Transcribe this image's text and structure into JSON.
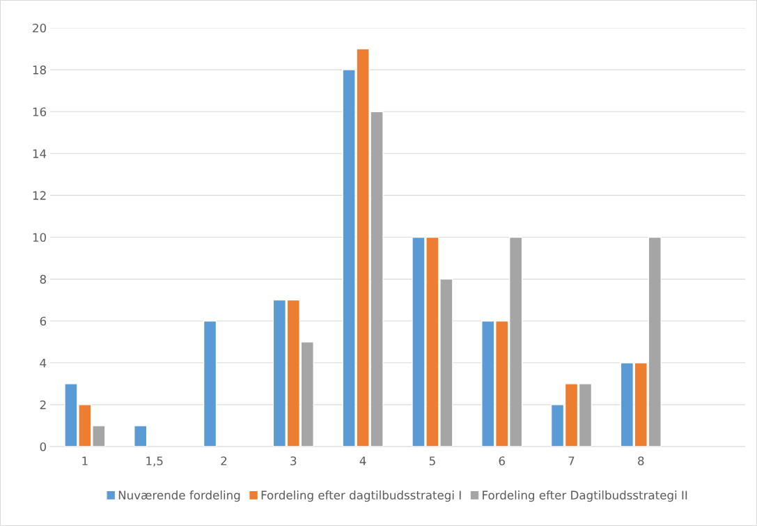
{
  "chart_data": {
    "type": "bar",
    "categories": [
      "1",
      "1,5",
      "2",
      "3",
      "4",
      "5",
      "6",
      "7",
      "8",
      null
    ],
    "series": [
      {
        "name": "Nuværende fordeling",
        "color": "#5b9bd5",
        "values": [
          3,
          1,
          6,
          7,
          18,
          10,
          6,
          2,
          4,
          null
        ]
      },
      {
        "name": "Fordeling efter dagtilbudsstrategi I",
        "color": "#ed7d31",
        "values": [
          2,
          null,
          null,
          7,
          19,
          10,
          6,
          3,
          4,
          null
        ]
      },
      {
        "name": "Fordeling efter Dagtilbudsstrategi II",
        "color": "#a5a5a5",
        "values": [
          1,
          null,
          null,
          5,
          16,
          8,
          10,
          3,
          10,
          null
        ]
      }
    ],
    "ylim": [
      0,
      20
    ],
    "yticks": [
      0,
      2,
      4,
      6,
      8,
      10,
      12,
      14,
      16,
      18,
      20
    ],
    "grid": "y",
    "legend": "bottom"
  }
}
